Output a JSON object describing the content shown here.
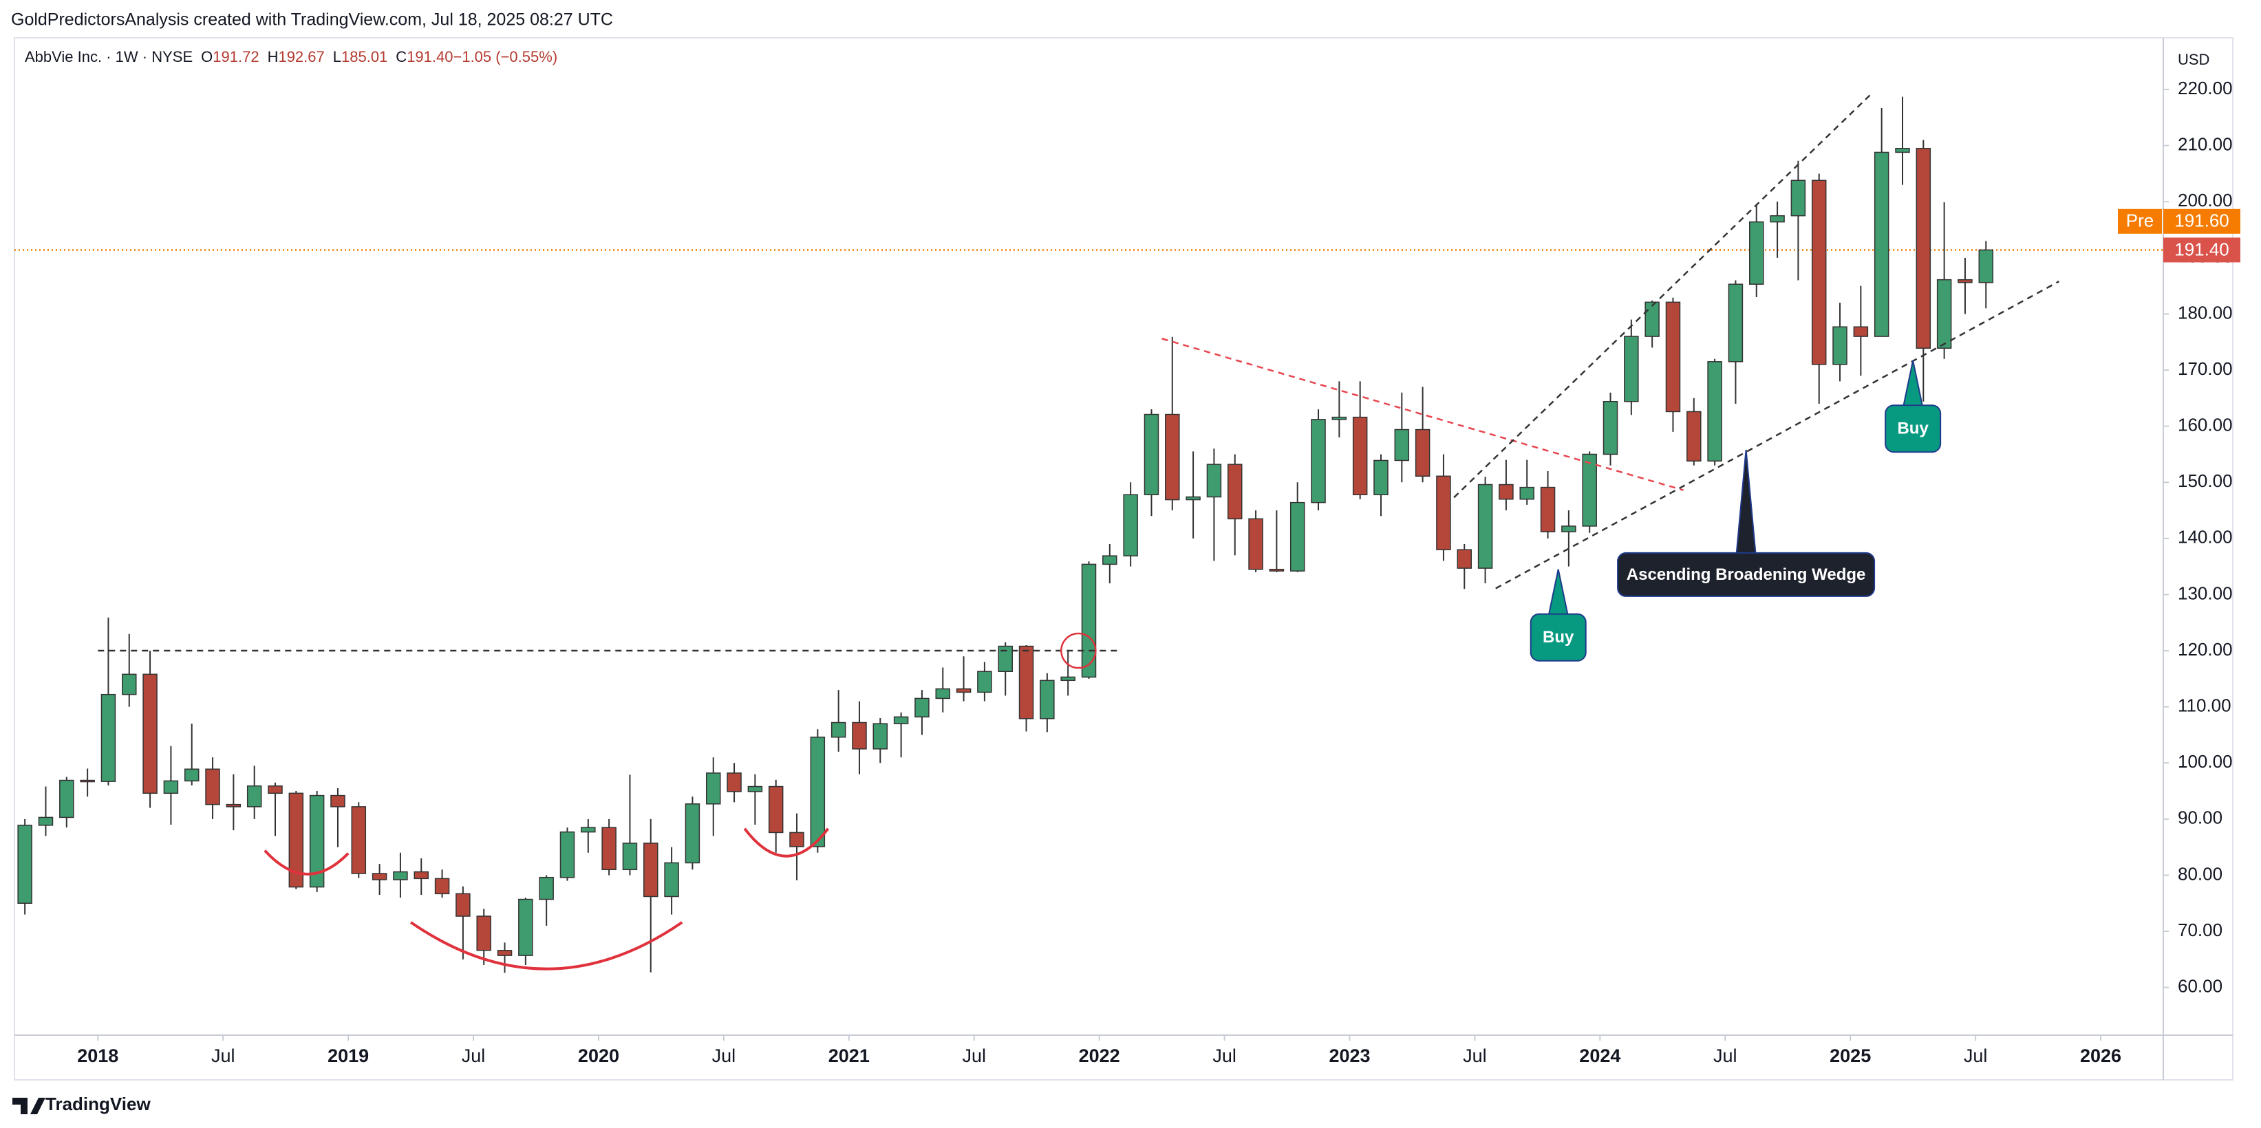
{
  "header": "GoldPredictorsAnalysis created with TradingView.com, Jul 18, 2025 08:27 UTC",
  "footer": "TradingView",
  "chart_data": {
    "type": "candlestick",
    "symbol": "AbbVie Inc. · 1W · NYSE",
    "ohlc_legend": [
      {
        "label": "O",
        "value": "191.72"
      },
      {
        "label": "H",
        "value": "192.67"
      },
      {
        "label": "L",
        "value": "185.01"
      },
      {
        "label": "C",
        "value": "191.40"
      },
      {
        "label": "",
        "value": "−1.05 (−0.55%)"
      }
    ],
    "currency": "USD",
    "up_color": "#3f9c6f",
    "down_color": "#b5473a",
    "border_color": "#333333",
    "grid": false,
    "x": [
      "2017-09",
      "2017-10",
      "2017-11",
      "2017-12",
      "2018-01",
      "2018-02",
      "2018-03",
      "2018-04",
      "2018-05",
      "2018-06",
      "2018-07",
      "2018-08",
      "2018-09",
      "2018-10",
      "2018-11",
      "2018-12",
      "2019-01",
      "2019-02",
      "2019-03",
      "2019-04",
      "2019-05",
      "2019-06",
      "2019-07",
      "2019-08",
      "2019-09",
      "2019-10",
      "2019-11",
      "2019-12",
      "2020-01",
      "2020-02",
      "2020-03",
      "2020-04",
      "2020-05",
      "2020-06",
      "2020-07",
      "2020-08",
      "2020-09",
      "2020-10",
      "2020-11",
      "2020-12",
      "2021-01",
      "2021-02",
      "2021-03",
      "2021-04",
      "2021-05",
      "2021-06",
      "2021-07",
      "2021-08",
      "2021-09",
      "2021-10",
      "2021-11",
      "2021-12",
      "2022-01",
      "2022-02",
      "2022-03",
      "2022-04",
      "2022-05",
      "2022-06",
      "2022-07",
      "2022-08",
      "2022-09",
      "2022-10",
      "2022-11",
      "2022-12",
      "2023-01",
      "2023-02",
      "2023-03",
      "2023-04",
      "2023-05",
      "2023-06",
      "2023-07",
      "2023-08",
      "2023-09",
      "2023-10",
      "2023-11",
      "2023-12",
      "2024-01",
      "2024-02",
      "2024-03",
      "2024-04",
      "2024-05",
      "2024-06",
      "2024-07",
      "2024-08",
      "2024-09",
      "2024-10",
      "2024-11",
      "2024-12",
      "2025-01",
      "2025-02",
      "2025-03",
      "2025-04",
      "2025-05",
      "2025-06",
      "2025-07"
    ],
    "open": [
      75,
      88.9,
      90.3,
      96.9,
      96.7,
      112.2,
      115.8,
      94.6,
      96.8,
      98.9,
      92.6,
      92.2,
      95.9,
      94.6,
      77.9,
      94.2,
      92.2,
      80.3,
      79.2,
      80.6,
      79.4,
      76.7,
      72.7,
      66.6,
      65.7,
      75.7,
      79.6,
      87.7,
      88.5,
      81,
      85.7,
      76.2,
      82.2,
      92.7,
      98.2,
      94.9,
      95.8,
      87.6,
      85.1,
      104.6,
      107.2,
      102.5,
      107,
      108.2,
      111.5,
      113.2,
      112.6,
      116.3,
      120.8,
      107.9,
      114.7,
      115.3,
      135.4,
      136.9,
      147.8,
      162.1,
      146.9,
      147.4,
      153.2,
      143.5,
      134.5,
      134.2,
      146.4,
      161.2,
      161.6,
      147.8,
      153.9,
      159.4,
      151.1,
      138,
      134.7,
      149.6,
      147,
      149.1,
      141.2,
      142.2,
      155,
      164.4,
      176,
      182.1,
      162.6,
      153.8,
      171.5,
      185.3,
      196.4,
      197.5,
      203.8,
      171,
      177.7,
      176,
      208.8,
      209.5,
      173.9,
      186.1,
      185.6
    ],
    "high": [
      90,
      95.8,
      97.5,
      99,
      125.9,
      123,
      120,
      103,
      107,
      101,
      98,
      99.5,
      96.5,
      95,
      95,
      95.5,
      93,
      82,
      84,
      83,
      81,
      78,
      74,
      68,
      76,
      80,
      88.5,
      90,
      90,
      97.9,
      90,
      85,
      94,
      101,
      100,
      98,
      97,
      91,
      106,
      113,
      111,
      108,
      109,
      113,
      117,
      119,
      118,
      121.5,
      121,
      116,
      120,
      135.9,
      139,
      150,
      163,
      175.9,
      155.5,
      156,
      155,
      145,
      145,
      150,
      163,
      168,
      168,
      155,
      166,
      167,
      155,
      139,
      151,
      154,
      154,
      152,
      145,
      155.5,
      166,
      179,
      182.4,
      182.9,
      165,
      172,
      186,
      199.5,
      200,
      207.3,
      205,
      182,
      185,
      216.7,
      218.7,
      211,
      199.9,
      190,
      193
    ],
    "low": [
      73,
      87,
      88.5,
      94,
      96,
      110,
      92,
      89,
      96,
      90,
      88,
      90,
      87,
      77.5,
      77,
      85,
      79.5,
      76.5,
      76,
      76.5,
      76,
      65,
      64,
      62.6,
      64,
      71,
      79,
      84,
      80,
      80,
      62.7,
      73,
      81,
      87,
      93,
      89,
      84,
      79.1,
      84,
      102,
      98,
      100,
      101,
      105,
      109,
      111,
      111,
      112,
      105.6,
      105.5,
      112,
      115,
      132,
      135,
      144,
      145,
      140,
      136,
      137,
      134,
      134,
      134,
      145,
      158,
      147,
      144,
      150,
      150,
      136,
      131,
      132,
      145,
      146,
      140,
      135,
      141,
      153,
      162,
      174,
      159,
      153,
      153,
      164,
      183,
      190,
      186,
      164,
      168,
      169,
      176,
      203,
      164.4,
      172,
      180,
      181
    ],
    "close": [
      88.9,
      90.3,
      96.9,
      96.7,
      112.2,
      115.8,
      94.6,
      96.8,
      98.9,
      92.6,
      92.2,
      95.9,
      94.6,
      77.9,
      94.2,
      92.2,
      80.3,
      79.2,
      80.6,
      79.4,
      76.7,
      72.7,
      66.6,
      65.7,
      75.7,
      79.6,
      87.7,
      88.5,
      81,
      85.7,
      76.2,
      82.2,
      92.7,
      98.2,
      94.9,
      95.8,
      87.6,
      85.1,
      104.6,
      107.2,
      102.5,
      107,
      108.2,
      111.5,
      113.2,
      112.6,
      116.3,
      120.8,
      107.9,
      114.7,
      115.3,
      135.4,
      136.9,
      147.8,
      162.1,
      146.9,
      147.4,
      153.2,
      143.5,
      134.5,
      134.2,
      146.4,
      161.2,
      161.6,
      147.8,
      153.9,
      159.4,
      151.1,
      138,
      134.7,
      149.6,
      147,
      149.1,
      141.2,
      142.2,
      155,
      164.4,
      176,
      182.1,
      162.6,
      153.8,
      171.5,
      185.3,
      196.4,
      197.5,
      203.8,
      171,
      177.7,
      176,
      208.8,
      209.5,
      173.9,
      186.1,
      185.6,
      191.4
    ],
    "xlim": [
      "2017-09",
      "2026-04"
    ],
    "xticks": [
      {
        "value": "2018-01",
        "label": "2018"
      },
      {
        "value": "2018-07",
        "label": "Jul"
      },
      {
        "value": "2019-01",
        "label": "2019"
      },
      {
        "value": "2019-07",
        "label": "Jul"
      },
      {
        "value": "2020-01",
        "label": "2020"
      },
      {
        "value": "2020-07",
        "label": "Jul"
      },
      {
        "value": "2021-01",
        "label": "2021"
      },
      {
        "value": "2021-07",
        "label": "Jul"
      },
      {
        "value": "2022-01",
        "label": "2022"
      },
      {
        "value": "2022-07",
        "label": "Jul"
      },
      {
        "value": "2023-01",
        "label": "2023"
      },
      {
        "value": "2023-07",
        "label": "Jul"
      },
      {
        "value": "2024-01",
        "label": "2024"
      },
      {
        "value": "2024-07",
        "label": "Jul"
      },
      {
        "value": "2025-01",
        "label": "2025"
      },
      {
        "value": "2025-07",
        "label": "Jul"
      },
      {
        "value": "2026-01",
        "label": "2026"
      }
    ],
    "ylim": [
      51.5,
      229.2
    ],
    "yticks": [
      {
        "value": 60,
        "label": "60.00"
      },
      {
        "value": 70,
        "label": "70.00"
      },
      {
        "value": 80,
        "label": "80.00"
      },
      {
        "value": 90,
        "label": "90.00"
      },
      {
        "value": 100,
        "label": "100.00"
      },
      {
        "value": 110,
        "label": "110.00"
      },
      {
        "value": 120,
        "label": "120.00"
      },
      {
        "value": 130,
        "label": "130.00"
      },
      {
        "value": 140,
        "label": "140.00"
      },
      {
        "value": 150,
        "label": "150.00"
      },
      {
        "value": 160,
        "label": "160.00"
      },
      {
        "value": 170,
        "label": "170.00"
      },
      {
        "value": 180,
        "label": "180.00"
      },
      {
        "value": 190,
        "label": "190.00"
      },
      {
        "value": 200,
        "label": "200.00"
      },
      {
        "value": 210,
        "label": "210.00"
      },
      {
        "value": 220,
        "label": "220.00"
      }
    ],
    "price_labels": [
      {
        "tag": "Pre",
        "value": 191.6,
        "label": "191.60",
        "color": "#f57c00"
      },
      {
        "value": 191.4,
        "label": "191.40",
        "color": "#d9534a"
      }
    ],
    "trendlines": [
      {
        "x": [
          "2018-01",
          "2022-02"
        ],
        "y": [
          120,
          120
        ],
        "color": "#333333"
      },
      {
        "x": [
          "2022-04",
          "2024-05"
        ],
        "y": [
          175.6,
          148.6
        ],
        "color": "#e8454f"
      },
      {
        "x": [
          "2023-06",
          "2025-02"
        ],
        "y": [
          147.3,
          219.2
        ],
        "color": "#333333"
      },
      {
        "x": [
          "2023-08",
          "2025-11"
        ],
        "y": [
          131.1,
          185.8
        ],
        "color": "#333333"
      }
    ],
    "arcs": [
      {
        "x": [
          "2018-09",
          "2019-01"
        ],
        "y": [
          84.4,
          83.9
        ],
        "low": 80.2
      },
      {
        "x": [
          "2019-04",
          "2020-05"
        ],
        "y": [
          71.6,
          71.6
        ],
        "low": 63.3
      },
      {
        "x": [
          "2020-08",
          "2020-12"
        ],
        "y": [
          88.3,
          88.3
        ],
        "low": 83.4
      }
    ],
    "arc_color": "#e0323c",
    "circle": {
      "x": "2021-12",
      "y": 120
    },
    "annotations": [
      {
        "text": "Buy",
        "x": "2023-11",
        "y": 134.5,
        "color": "#089981"
      },
      {
        "text": "Ascending Broadening Wedge",
        "x": "2024-08",
        "y": 155.8,
        "color": "#1e222d"
      },
      {
        "text": "Buy",
        "x": "2025-04",
        "y": 171.7,
        "color": "#089981"
      }
    ]
  }
}
